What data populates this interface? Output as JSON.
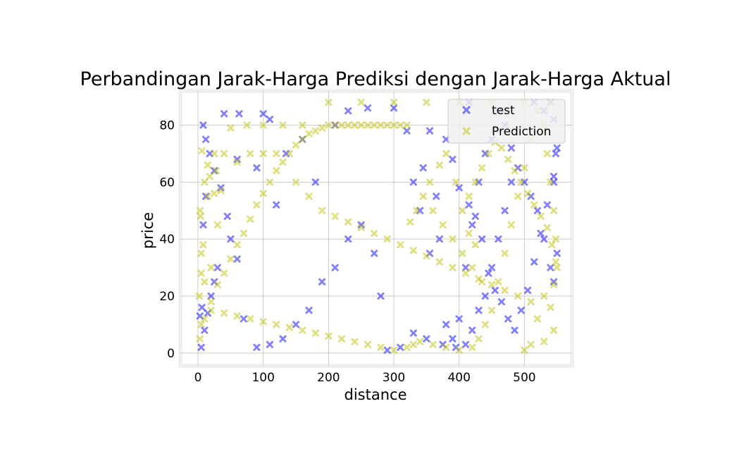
{
  "chart_data": {
    "type": "scatter",
    "title": "Perbandingan Jarak-Harga Prediksi dengan Jarak-Harga Aktual",
    "xlabel": "distance",
    "ylabel": "price",
    "xlim": [
      -27,
      573
    ],
    "ylim": [
      -4.5,
      92
    ],
    "x_ticks": [
      0,
      100,
      200,
      300,
      400,
      500
    ],
    "y_ticks": [
      0,
      20,
      40,
      60,
      80
    ],
    "x_tick_labels": [
      "0",
      "100",
      "200",
      "300",
      "400",
      "500"
    ],
    "y_tick_labels": [
      "0",
      "20",
      "40",
      "60",
      "80"
    ],
    "grid": true,
    "legend_position": "top-right",
    "marker": "X",
    "series": [
      {
        "name": "test",
        "color": "#0000ff",
        "alpha": 0.5,
        "points": [
          [
            5,
            2
          ],
          [
            10,
            8
          ],
          [
            15,
            14
          ],
          [
            20,
            20
          ],
          [
            25,
            25
          ],
          [
            30,
            30
          ],
          [
            8,
            45
          ],
          [
            12,
            55
          ],
          [
            40,
            84
          ],
          [
            63,
            84
          ],
          [
            100,
            84
          ],
          [
            110,
            82
          ],
          [
            135,
            70
          ],
          [
            160,
            75
          ],
          [
            180,
            60
          ],
          [
            210,
            80
          ],
          [
            230,
            85
          ],
          [
            260,
            86
          ],
          [
            300,
            86
          ],
          [
            320,
            78
          ],
          [
            340,
            50
          ],
          [
            355,
            35
          ],
          [
            370,
            40
          ],
          [
            380,
            10
          ],
          [
            390,
            5
          ],
          [
            400,
            12
          ],
          [
            410,
            30
          ],
          [
            420,
            45
          ],
          [
            430,
            60
          ],
          [
            440,
            70
          ],
          [
            450,
            75
          ],
          [
            460,
            85
          ],
          [
            470,
            80
          ],
          [
            480,
            72
          ],
          [
            490,
            65
          ],
          [
            500,
            60
          ],
          [
            510,
            55
          ],
          [
            520,
            50
          ],
          [
            530,
            40
          ],
          [
            540,
            30
          ],
          [
            545,
            25
          ],
          [
            550,
            35
          ],
          [
            545,
            60
          ],
          [
            548,
            70
          ],
          [
            530,
            85
          ],
          [
            515,
            88
          ],
          [
            480,
            60
          ],
          [
            470,
            50
          ],
          [
            460,
            40
          ],
          [
            450,
            30
          ],
          [
            440,
            20
          ],
          [
            430,
            15
          ],
          [
            420,
            8
          ],
          [
            410,
            3
          ],
          [
            395,
            2
          ],
          [
            375,
            3
          ],
          [
            350,
            5
          ],
          [
            330,
            7
          ],
          [
            310,
            2
          ],
          [
            290,
            1
          ],
          [
            280,
            20
          ],
          [
            270,
            35
          ],
          [
            250,
            45
          ],
          [
            230,
            40
          ],
          [
            210,
            30
          ],
          [
            190,
            25
          ],
          [
            170,
            15
          ],
          [
            150,
            10
          ],
          [
            130,
            5
          ],
          [
            110,
            3
          ],
          [
            90,
            2
          ],
          [
            70,
            12
          ],
          [
            60,
            33
          ],
          [
            50,
            40
          ],
          [
            45,
            48
          ],
          [
            35,
            58
          ],
          [
            25,
            64
          ],
          [
            18,
            70
          ],
          [
            12,
            75
          ],
          [
            8,
            80
          ],
          [
            380,
            75
          ],
          [
            390,
            68
          ],
          [
            400,
            58
          ],
          [
            415,
            52
          ],
          [
            425,
            48
          ],
          [
            435,
            40
          ],
          [
            445,
            28
          ],
          [
            455,
            22
          ],
          [
            465,
            18
          ],
          [
            475,
            12
          ],
          [
            485,
            8
          ],
          [
            495,
            15
          ],
          [
            505,
            22
          ],
          [
            515,
            32
          ],
          [
            525,
            42
          ],
          [
            535,
            52
          ],
          [
            545,
            62
          ],
          [
            550,
            72
          ],
          [
            545,
            82
          ],
          [
            540,
            88
          ],
          [
            3,
            13
          ],
          [
            6,
            16
          ],
          [
            330,
            60
          ],
          [
            345,
            65
          ],
          [
            355,
            78
          ],
          [
            365,
            55
          ],
          [
            415,
            88
          ],
          [
            90,
            65
          ],
          [
            60,
            68
          ],
          [
            120,
            52
          ]
        ]
      },
      {
        "name": "Prediction",
        "color": "#bfbf00",
        "alpha": 0.5,
        "points": [
          [
            3,
            5
          ],
          [
            10,
            12
          ],
          [
            20,
            18
          ],
          [
            30,
            24
          ],
          [
            40,
            28
          ],
          [
            50,
            33
          ],
          [
            60,
            38
          ],
          [
            70,
            42
          ],
          [
            80,
            47
          ],
          [
            90,
            52
          ],
          [
            100,
            56
          ],
          [
            110,
            60
          ],
          [
            120,
            64
          ],
          [
            130,
            67
          ],
          [
            140,
            70
          ],
          [
            150,
            73
          ],
          [
            160,
            75
          ],
          [
            170,
            77
          ],
          [
            180,
            78
          ],
          [
            190,
            79
          ],
          [
            200,
            80
          ],
          [
            210,
            80
          ],
          [
            220,
            80
          ],
          [
            230,
            80
          ],
          [
            240,
            80
          ],
          [
            250,
            80
          ],
          [
            260,
            80
          ],
          [
            270,
            80
          ],
          [
            280,
            80
          ],
          [
            290,
            80
          ],
          [
            300,
            80
          ],
          [
            310,
            80
          ],
          [
            320,
            80
          ],
          [
            15,
            55
          ],
          [
            25,
            56
          ],
          [
            35,
            57
          ],
          [
            50,
            79
          ],
          [
            75,
            80
          ],
          [
            100,
            80
          ],
          [
            130,
            80
          ],
          [
            160,
            80
          ],
          [
            200,
            88
          ],
          [
            250,
            88
          ],
          [
            300,
            88
          ],
          [
            350,
            88
          ],
          [
            400,
            88
          ],
          [
            450,
            88
          ],
          [
            500,
            88
          ],
          [
            540,
            88
          ],
          [
            30,
            45
          ],
          [
            20,
            30
          ],
          [
            10,
            25
          ],
          [
            5,
            28
          ],
          [
            8,
            38
          ],
          [
            4,
            48
          ],
          [
            15,
            66
          ],
          [
            25,
            70
          ],
          [
            40,
            70
          ],
          [
            60,
            67
          ],
          [
            80,
            70
          ],
          [
            100,
            70
          ],
          [
            120,
            70
          ],
          [
            150,
            60
          ],
          [
            170,
            55
          ],
          [
            190,
            50
          ],
          [
            210,
            48
          ],
          [
            230,
            46
          ],
          [
            250,
            44
          ],
          [
            270,
            42
          ],
          [
            290,
            40
          ],
          [
            310,
            38
          ],
          [
            330,
            36
          ],
          [
            350,
            34
          ],
          [
            370,
            32
          ],
          [
            390,
            30
          ],
          [
            410,
            28
          ],
          [
            430,
            26
          ],
          [
            450,
            24
          ],
          [
            470,
            22
          ],
          [
            490,
            20
          ],
          [
            510,
            18
          ],
          [
            530,
            20
          ],
          [
            545,
            24
          ],
          [
            550,
            30
          ],
          [
            548,
            40
          ],
          [
            545,
            50
          ],
          [
            540,
            60
          ],
          [
            535,
            70
          ],
          [
            530,
            80
          ],
          [
            520,
            85
          ],
          [
            510,
            75
          ],
          [
            500,
            65
          ],
          [
            490,
            55
          ],
          [
            480,
            45
          ],
          [
            470,
            35
          ],
          [
            460,
            25
          ],
          [
            450,
            15
          ],
          [
            440,
            10
          ],
          [
            430,
            5
          ],
          [
            420,
            2
          ],
          [
            400,
            1
          ],
          [
            380,
            2
          ],
          [
            360,
            3
          ],
          [
            340,
            4
          ],
          [
            330,
            3
          ],
          [
            320,
            2
          ],
          [
            300,
            1
          ],
          [
            280,
            2
          ],
          [
            260,
            3
          ],
          [
            240,
            4
          ],
          [
            220,
            5
          ],
          [
            200,
            6
          ],
          [
            180,
            7
          ],
          [
            160,
            8
          ],
          [
            140,
            9
          ],
          [
            120,
            10
          ],
          [
            100,
            11
          ],
          [
            80,
            12
          ],
          [
            60,
            13
          ],
          [
            40,
            14
          ],
          [
            20,
            15
          ],
          [
            5,
            10
          ],
          [
            2,
            20
          ],
          [
            5,
            35
          ],
          [
            3,
            50
          ],
          [
            10,
            60
          ],
          [
            18,
            62
          ],
          [
            28,
            64
          ],
          [
            6,
            71
          ],
          [
            360,
            50
          ],
          [
            375,
            45
          ],
          [
            390,
            40
          ],
          [
            405,
            35
          ],
          [
            420,
            30
          ],
          [
            435,
            25
          ],
          [
            415,
            55
          ],
          [
            425,
            60
          ],
          [
            435,
            65
          ],
          [
            445,
            70
          ],
          [
            455,
            74
          ],
          [
            465,
            72
          ],
          [
            475,
            68
          ],
          [
            485,
            64
          ],
          [
            495,
            60
          ],
          [
            505,
            56
          ],
          [
            515,
            52
          ],
          [
            525,
            48
          ],
          [
            535,
            44
          ],
          [
            542,
            38
          ],
          [
            548,
            32
          ],
          [
            395,
            60
          ],
          [
            405,
            50
          ],
          [
            415,
            42
          ],
          [
            425,
            38
          ],
          [
            380,
            70
          ],
          [
            370,
            66
          ],
          [
            355,
            60
          ],
          [
            345,
            55
          ],
          [
            335,
            50
          ],
          [
            325,
            46
          ],
          [
            510,
            3
          ],
          [
            530,
            4
          ],
          [
            500,
            1
          ],
          [
            545,
            8
          ],
          [
            520,
            12
          ],
          [
            540,
            16
          ]
        ]
      }
    ]
  }
}
